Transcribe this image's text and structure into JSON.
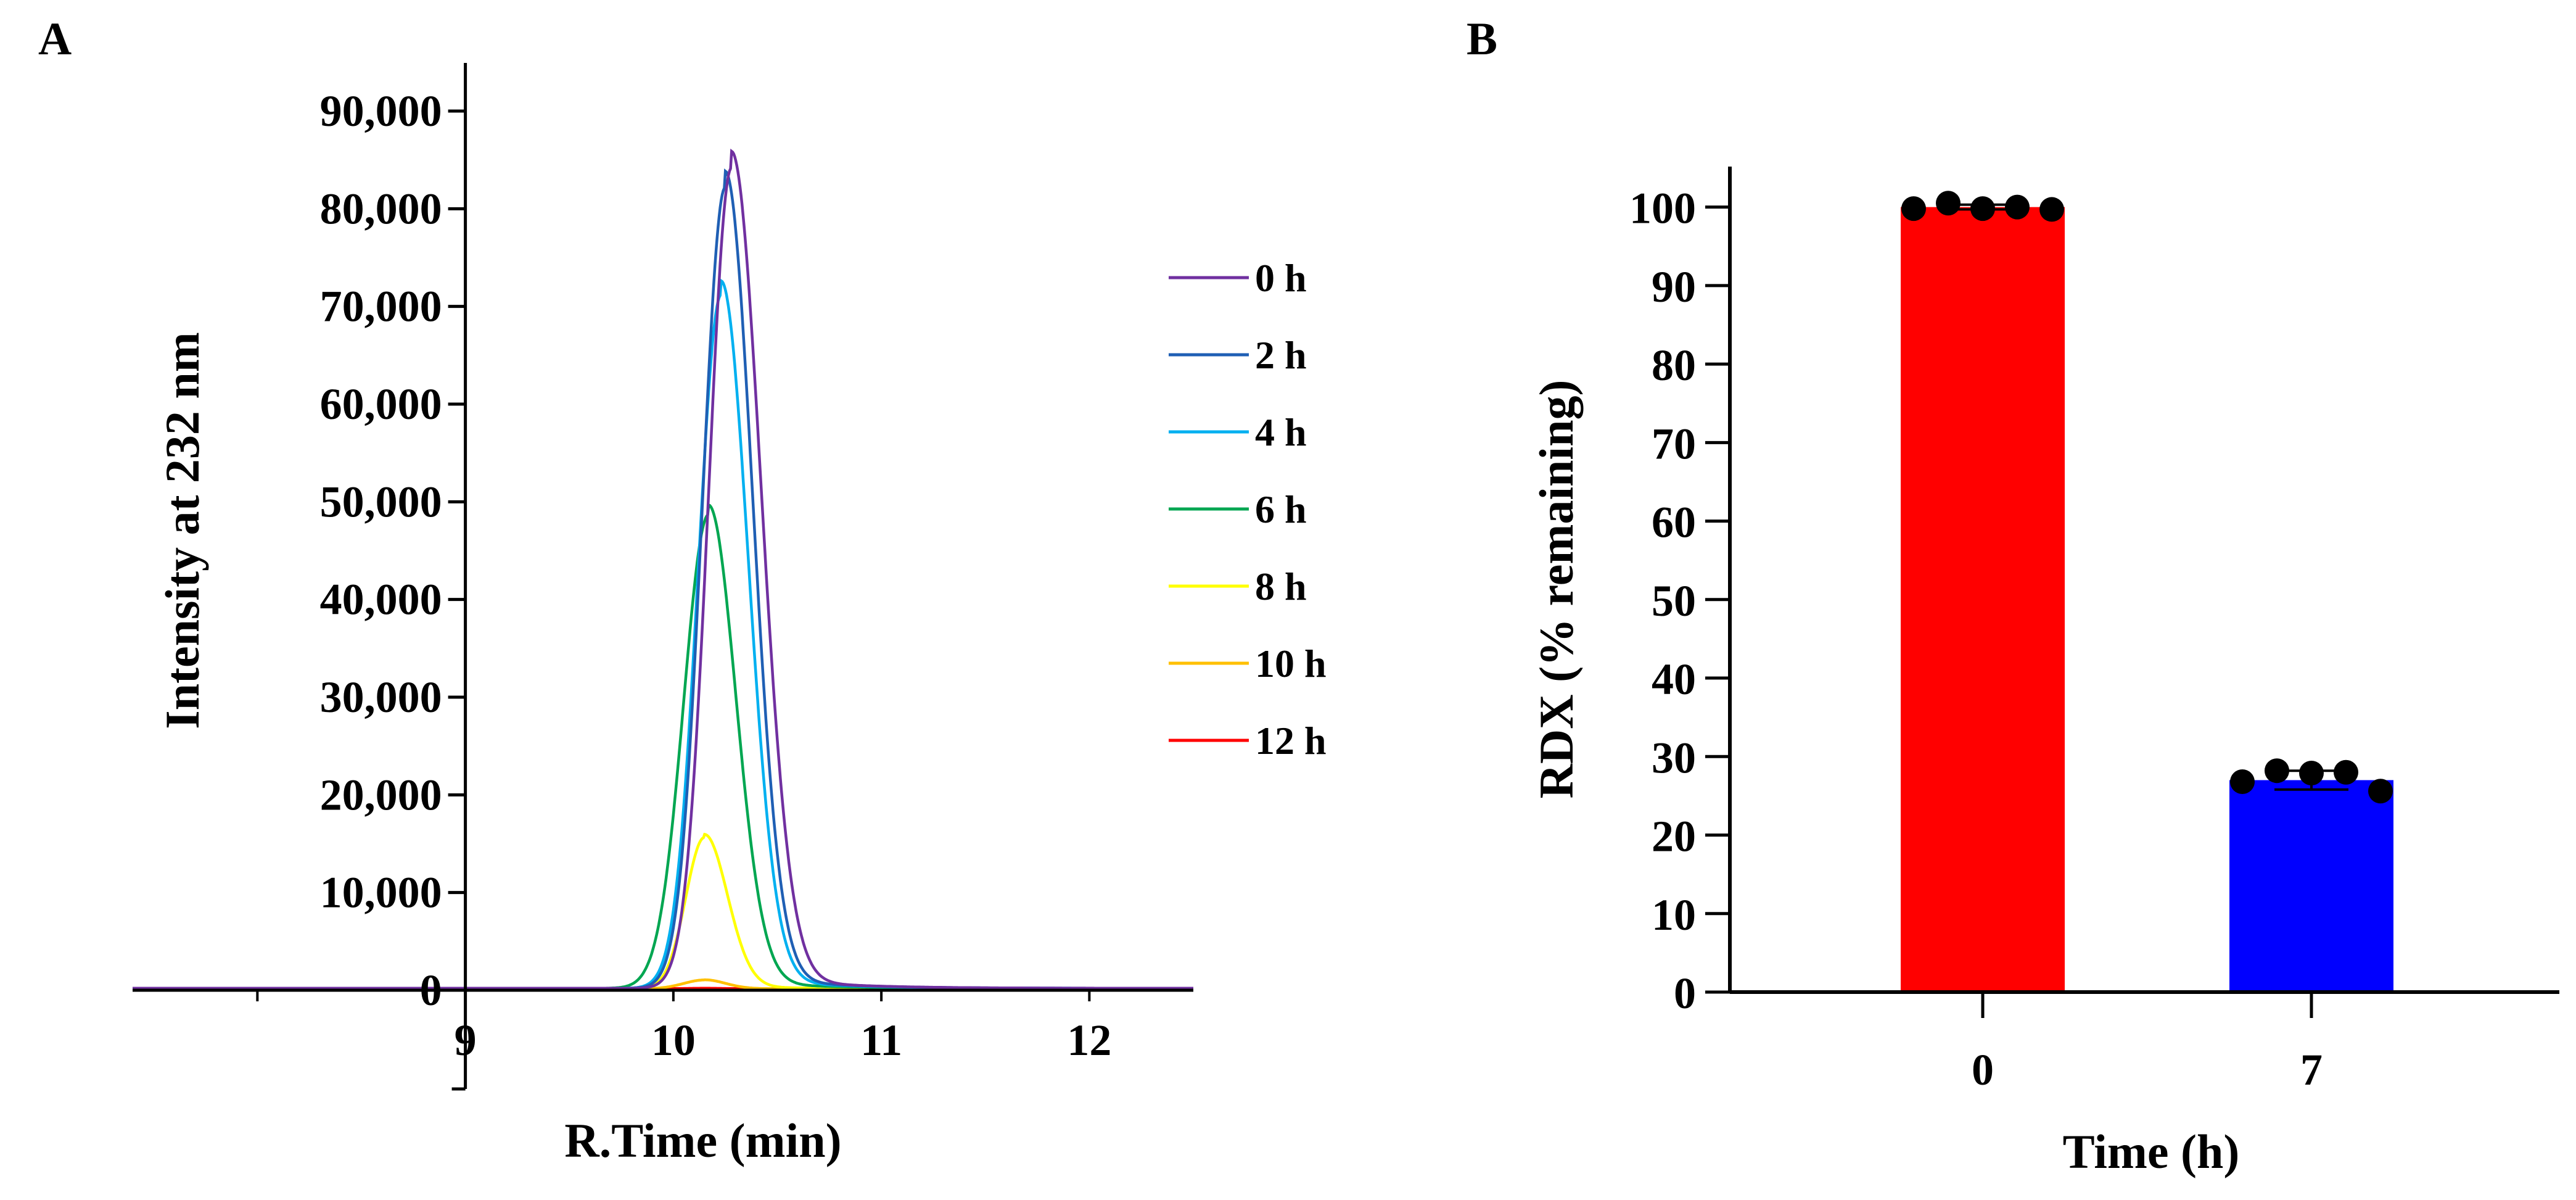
{
  "chart_data": [
    {
      "panel": "A",
      "type": "line",
      "title": "",
      "xlabel": "R.Time (min)",
      "ylabel": "Intensity at 232 nm",
      "xlim": [
        7.4,
        12.5
      ],
      "ylim": [
        0,
        90000
      ],
      "x_ticks": [
        "9",
        "10",
        "11",
        "12"
      ],
      "y_ticks": [
        "0",
        "10,000",
        "20,000",
        "30,000",
        "40,000",
        "50,000",
        "60,000",
        "70,000",
        "80,000",
        "90,000"
      ],
      "legend_position": "right",
      "series": [
        {
          "name": "0 h",
          "color": "#7030A0",
          "peak_time": 10.28,
          "peak_height": 84000,
          "sigma_left": 0.11,
          "sigma_right": 0.14,
          "baseline": 200
        },
        {
          "name": "2 h",
          "color": "#1F5FB4",
          "peak_time": 10.25,
          "peak_height": 82000,
          "sigma_left": 0.11,
          "sigma_right": 0.13,
          "baseline": 200
        },
        {
          "name": "4 h",
          "color": "#00B0F0",
          "peak_time": 10.23,
          "peak_height": 71000,
          "sigma_left": 0.11,
          "sigma_right": 0.13,
          "baseline": 200
        },
        {
          "name": "6 h",
          "color": "#00A651",
          "peak_time": 10.17,
          "peak_height": 48500,
          "sigma_left": 0.12,
          "sigma_right": 0.13,
          "baseline": 200
        },
        {
          "name": "8 h",
          "color": "#FFFF00",
          "peak_time": 10.15,
          "peak_height": 15500,
          "sigma_left": 0.09,
          "sigma_right": 0.11,
          "baseline": 150
        },
        {
          "name": "10 h",
          "color": "#FFC000",
          "peak_time": 10.15,
          "peak_height": 900,
          "sigma_left": 0.1,
          "sigma_right": 0.1,
          "baseline": 150
        },
        {
          "name": "12 h",
          "color": "#FF0000",
          "peak_time": 10.15,
          "peak_height": 50,
          "sigma_left": 0.1,
          "sigma_right": 0.1,
          "baseline": 150
        }
      ]
    },
    {
      "panel": "B",
      "type": "bar",
      "title": "",
      "xlabel": "Time (h)",
      "ylabel": "RDX (% remaining)",
      "ylim": [
        0,
        105
      ],
      "y_ticks": [
        "0",
        "10",
        "20",
        "30",
        "40",
        "50",
        "60",
        "70",
        "80",
        "90",
        "100"
      ],
      "categories": [
        "0",
        "7"
      ],
      "values": [
        100,
        27
      ],
      "colors": [
        "#FF0000",
        "#0000FF"
      ],
      "error": [
        0.3,
        1.2
      ],
      "points": [
        [
          99.8,
          100.5,
          99.8,
          100.0,
          99.7
        ],
        [
          26.8,
          28.2,
          27.9,
          28.0,
          25.6
        ]
      ]
    }
  ],
  "panel_labels": {
    "a": "A",
    "b": "B"
  }
}
